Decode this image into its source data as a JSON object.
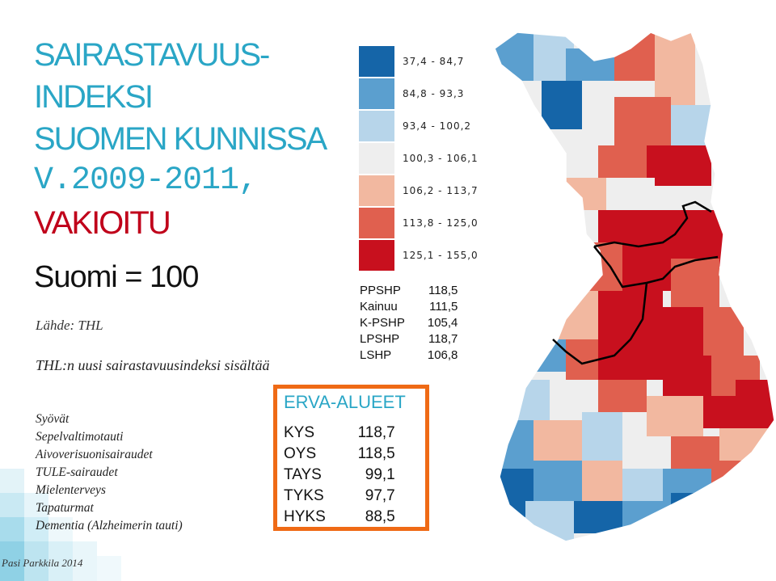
{
  "title": {
    "line1": "SAIRASTAVUUS-",
    "line2": "INDEKSI",
    "line3": "SUOMEN KUNNISSA",
    "line4": "V.2009-2011,",
    "line5": "VAKIOITU"
  },
  "subtitle": "Suomi = 100",
  "source": "Lähde: THL",
  "contents_heading": "THL:n uusi sairastavuusindeksi sisältää",
  "contents_items": [
    "Syövät",
    "Sepelvaltimotauti",
    "Aivoverisuonisairaudet",
    "TULE-sairaudet",
    "Mielenterveys",
    "Tapaturmat",
    "Dementia (Alzheimerin tauti)"
  ],
  "credit": "Pasi Parkkila 2014",
  "legend": [
    {
      "label": "37,4 - 84,7",
      "color": "#1565a8"
    },
    {
      "label": "84,8 - 93,3",
      "color": "#5b9fcf"
    },
    {
      "label": "93,4 - 100,2",
      "color": "#b7d5ea"
    },
    {
      "label": "100,3 - 106,1",
      "color": "#eeeeee"
    },
    {
      "label": "106,2 - 113,7",
      "color": "#f2b8a0"
    },
    {
      "label": "113,8 - 125,0",
      "color": "#e0604f"
    },
    {
      "label": "125,1 - 155,0",
      "color": "#c8101e"
    }
  ],
  "regions": [
    {
      "name": "PPSHP",
      "value": "118,5"
    },
    {
      "name": "Kainuu",
      "value": "111,5"
    },
    {
      "name": "K-PSHP",
      "value": "105,4"
    },
    {
      "name": "LPSHP",
      "value": "118,7"
    },
    {
      "name": "LSHP",
      "value": "106,8"
    }
  ],
  "erva": {
    "title": "ERVA-ALUEET",
    "rows": [
      {
        "name": "KYS",
        "value": "118,7"
      },
      {
        "name": "OYS",
        "value": "118,5"
      },
      {
        "name": "TAYS",
        "value": "99,1"
      },
      {
        "name": "TYKS",
        "value": "97,7"
      },
      {
        "name": "HYKS",
        "value": "88,5"
      }
    ]
  },
  "colors": {
    "title_blue": "#2aa6c6",
    "title_red": "#c0001a",
    "erva_border": "#ef6a15"
  }
}
